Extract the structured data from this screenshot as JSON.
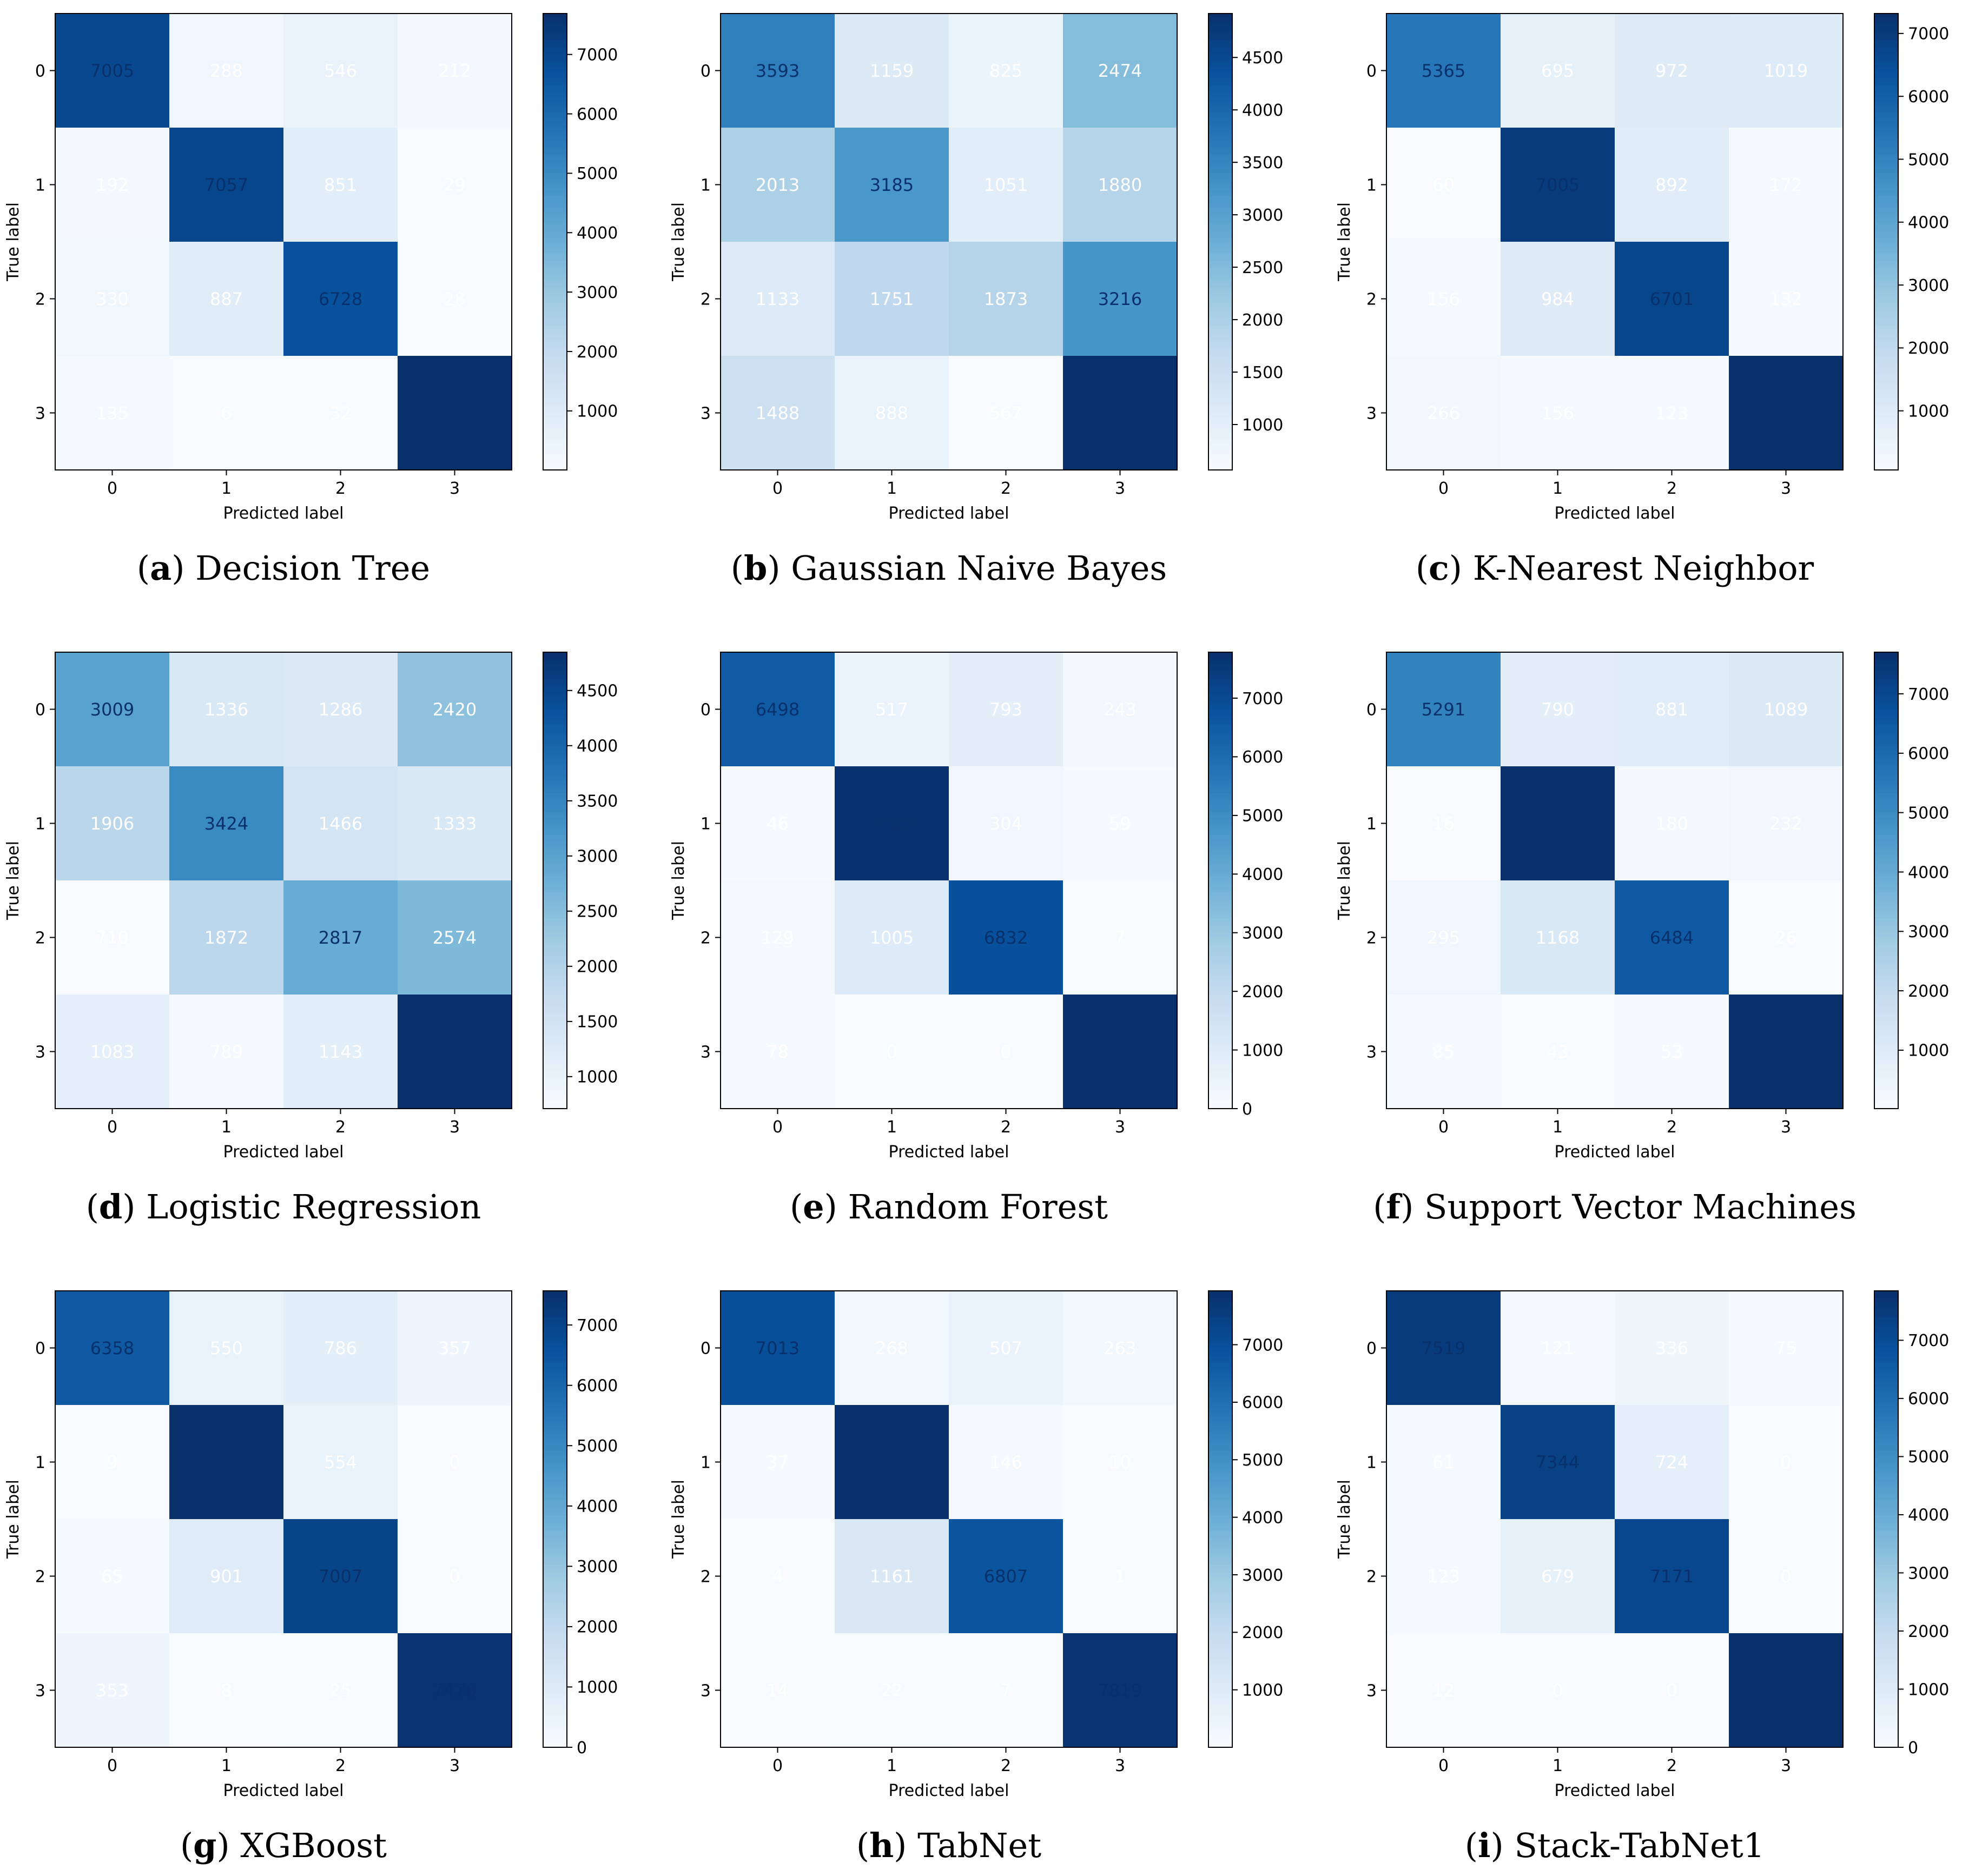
{
  "figure": {
    "colormap": "Blues",
    "colormap_stops": [
      "#f7fbff",
      "#deebf7",
      "#c6dbef",
      "#9ecae1",
      "#6baed6",
      "#4292c6",
      "#2171b5",
      "#08519c",
      "#08306b"
    ],
    "light_text_color": "#ffffff",
    "dark_text_color": "#08306b",
    "axis_color": "#000000"
  },
  "chart_data": [
    {
      "type": "heatmap",
      "panel": "a",
      "model": "Decision Tree",
      "caption_letter": "a",
      "caption_text": "Decision Tree",
      "xlabel": "Predicted label",
      "ylabel": "True label",
      "x_tick_labels": [
        "0",
        "1",
        "2",
        "3"
      ],
      "y_tick_labels": [
        "0",
        "1",
        "2",
        "3"
      ],
      "matrix": [
        [
          7005,
          288,
          546,
          212
        ],
        [
          192,
          7057,
          851,
          29
        ],
        [
          330,
          887,
          6728,
          28
        ],
        [
          135,
          6,
          32,
          7689
        ]
      ],
      "colorbar": {
        "min": 6,
        "max": 7689,
        "ticks": [
          1000,
          2000,
          3000,
          4000,
          5000,
          6000,
          7000
        ]
      }
    },
    {
      "type": "heatmap",
      "panel": "b",
      "model": "Gaussian Naive Bayes",
      "caption_letter": "b",
      "caption_text": "Gaussian Naive Bayes",
      "xlabel": "Predicted label",
      "ylabel": "True label",
      "x_tick_labels": [
        "0",
        "1",
        "2",
        "3"
      ],
      "y_tick_labels": [
        "0",
        "1",
        "2",
        "3"
      ],
      "matrix": [
        [
          3593,
          1159,
          825,
          2474
        ],
        [
          2013,
          3185,
          1051,
          1880
        ],
        [
          1133,
          1751,
          1873,
          3216
        ],
        [
          1488,
          888,
          567,
          4919
        ]
      ],
      "colorbar": {
        "min": 567,
        "max": 4919,
        "ticks": [
          1000,
          1500,
          2000,
          2500,
          3000,
          3500,
          4000,
          4500
        ]
      }
    },
    {
      "type": "heatmap",
      "panel": "c",
      "model": "K-Nearest Neighbor",
      "caption_letter": "c",
      "caption_text": "K-Nearest Neighbor",
      "xlabel": "Predicted label",
      "ylabel": "True label",
      "x_tick_labels": [
        "0",
        "1",
        "2",
        "3"
      ],
      "y_tick_labels": [
        "0",
        "1",
        "2",
        "3"
      ],
      "matrix": [
        [
          5365,
          695,
          972,
          1019
        ],
        [
          60,
          7005,
          892,
          172
        ],
        [
          156,
          984,
          6701,
          132
        ],
        [
          266,
          156,
          123,
          7317
        ]
      ],
      "colorbar": {
        "min": 60,
        "max": 7317,
        "ticks": [
          1000,
          2000,
          3000,
          4000,
          5000,
          6000,
          7000
        ]
      }
    },
    {
      "type": "heatmap",
      "panel": "d",
      "model": "Logistic Regression",
      "caption_letter": "d",
      "caption_text": "Logistic Regression",
      "xlabel": "Predicted label",
      "ylabel": "True label",
      "x_tick_labels": [
        "0",
        "1",
        "2",
        "3"
      ],
      "y_tick_labels": [
        "0",
        "1",
        "2",
        "3"
      ],
      "matrix": [
        [
          3009,
          1336,
          1286,
          2420
        ],
        [
          1906,
          3424,
          1466,
          1333
        ],
        [
          710,
          1872,
          2817,
          2574
        ],
        [
          1083,
          789,
          1143,
          4847
        ]
      ],
      "colorbar": {
        "min": 710,
        "max": 4847,
        "ticks": [
          1000,
          1500,
          2000,
          2500,
          3000,
          3500,
          4000,
          4500
        ]
      }
    },
    {
      "type": "heatmap",
      "panel": "e",
      "model": "Random Forest",
      "caption_letter": "e",
      "caption_text": "Random Forest",
      "xlabel": "Predicted label",
      "ylabel": "True label",
      "x_tick_labels": [
        "0",
        "1",
        "2",
        "3"
      ],
      "y_tick_labels": [
        "0",
        "1",
        "2",
        "3"
      ],
      "matrix": [
        [
          6498,
          517,
          793,
          243
        ],
        [
          46,
          7720,
          304,
          59
        ],
        [
          129,
          1005,
          6832,
          7
        ],
        [
          78,
          0,
          0,
          7784
        ]
      ],
      "colorbar": {
        "min": 0,
        "max": 7784,
        "ticks": [
          0,
          1000,
          2000,
          3000,
          4000,
          5000,
          6000,
          7000
        ]
      }
    },
    {
      "type": "heatmap",
      "panel": "f",
      "model": "Support Vector Machines",
      "caption_letter": "f",
      "caption_text": "Support Vector Machines",
      "xlabel": "Predicted label",
      "ylabel": "True label",
      "x_tick_labels": [
        "0",
        "1",
        "2",
        "3"
      ],
      "y_tick_labels": [
        "0",
        "1",
        "2",
        "3"
      ],
      "matrix": [
        [
          5291,
          790,
          881,
          1089
        ],
        [
          16,
          7701,
          180,
          232
        ],
        [
          295,
          1168,
          6484,
          26
        ],
        [
          85,
          43,
          53,
          7681
        ]
      ],
      "colorbar": {
        "min": 16,
        "max": 7701,
        "ticks": [
          1000,
          2000,
          3000,
          4000,
          5000,
          6000,
          7000
        ]
      }
    },
    {
      "type": "heatmap",
      "panel": "g",
      "model": "XGBoost",
      "caption_letter": "g",
      "caption_text": "XGBoost",
      "xlabel": "Predicted label",
      "ylabel": "True label",
      "x_tick_labels": [
        "0",
        "1",
        "2",
        "3"
      ],
      "y_tick_labels": [
        "0",
        "1",
        "2",
        "3"
      ],
      "matrix": [
        [
          6358,
          550,
          786,
          357
        ],
        [
          9,
          7566,
          554,
          0
        ],
        [
          65,
          901,
          7007,
          0
        ],
        [
          353,
          8,
          25,
          7476
        ]
      ],
      "colorbar": {
        "min": 0,
        "max": 7566,
        "ticks": [
          0,
          1000,
          2000,
          3000,
          4000,
          5000,
          6000,
          7000
        ]
      }
    },
    {
      "type": "heatmap",
      "panel": "h",
      "model": "TabNet",
      "caption_letter": "h",
      "caption_text": "TabNet",
      "xlabel": "Predicted label",
      "ylabel": "True label",
      "x_tick_labels": [
        "0",
        "1",
        "2",
        "3"
      ],
      "y_tick_labels": [
        "0",
        "1",
        "2",
        "3"
      ],
      "matrix": [
        [
          7013,
          268,
          507,
          263
        ],
        [
          37,
          7936,
          146,
          10
        ],
        [
          4,
          1161,
          6807,
          1
        ],
        [
          14,
          22,
          7,
          7819
        ]
      ],
      "colorbar": {
        "min": 1,
        "max": 7936,
        "ticks": [
          1000,
          2000,
          3000,
          4000,
          5000,
          6000,
          7000
        ]
      }
    },
    {
      "type": "heatmap",
      "panel": "i",
      "model": "Stack-TabNet1",
      "caption_letter": "i",
      "caption_text": "Stack-TabNet1",
      "xlabel": "Predicted label",
      "ylabel": "True label",
      "x_tick_labels": [
        "0",
        "1",
        "2",
        "3"
      ],
      "y_tick_labels": [
        "0",
        "1",
        "2",
        "3"
      ],
      "matrix": [
        [
          7519,
          121,
          336,
          75
        ],
        [
          61,
          7344,
          724,
          0
        ],
        [
          123,
          679,
          7171,
          0
        ],
        [
          12,
          0,
          0,
          7850
        ]
      ],
      "colorbar": {
        "min": 0,
        "max": 7850,
        "ticks": [
          0,
          1000,
          2000,
          3000,
          4000,
          5000,
          6000,
          7000
        ]
      }
    }
  ]
}
